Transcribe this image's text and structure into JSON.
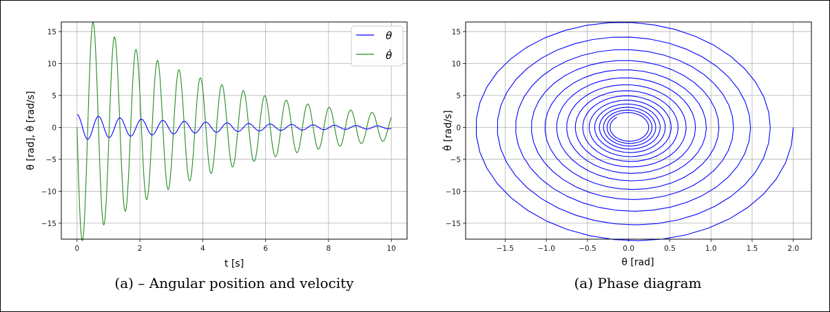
{
  "chart_data": [
    {
      "type": "line",
      "caption": "(a)   – Angular position and velocity",
      "xlabel": "t [s]",
      "ylabel": "θ [rad], θ̇ [rad/s]",
      "xlim": [
        -0.5,
        10.5
      ],
      "ylim": [
        -17.5,
        16.5
      ],
      "xticks": [
        0,
        2,
        4,
        6,
        8,
        10
      ],
      "yticks": [
        -15,
        -10,
        -5,
        0,
        5,
        10,
        15
      ],
      "grid": true,
      "legend_position": "top-right",
      "model": {
        "theta0": 2.0,
        "omega": 9.2,
        "decay": 0.22,
        "duration": 10
      },
      "series": [
        {
          "name": "θ",
          "color": "#0000ff",
          "peaks": [
            [
              0.0,
              2.0
            ],
            [
              0.34,
              -1.7
            ],
            [
              0.68,
              1.6
            ],
            [
              1.02,
              -1.4
            ],
            [
              1.37,
              1.3
            ],
            [
              1.71,
              -1.2
            ],
            [
              2.05,
              1.1
            ],
            [
              2.39,
              -1.0
            ],
            [
              2.73,
              0.9
            ],
            [
              3.07,
              -0.85
            ],
            [
              3.41,
              0.8
            ]
          ]
        },
        {
          "name": "θ̇",
          "color": "#228b22",
          "peaks": [
            [
              0.17,
              -15.8
            ],
            [
              0.6,
              14.6
            ],
            [
              0.96,
              -13.3
            ],
            [
              1.31,
              12.3
            ],
            [
              1.66,
              -11.2
            ],
            [
              2.0,
              10.4
            ],
            [
              2.35,
              -9.6
            ],
            [
              2.7,
              8.8
            ],
            [
              3.05,
              -8.1
            ],
            [
              3.39,
              7.5
            ],
            [
              3.74,
              -6.9
            ],
            [
              4.08,
              6.3
            ],
            [
              4.43,
              -5.8
            ],
            [
              4.77,
              5.4
            ],
            [
              5.12,
              -4.9
            ],
            [
              5.46,
              4.6
            ],
            [
              5.81,
              -4.2
            ],
            [
              6.15,
              3.9
            ],
            [
              6.5,
              -3.5
            ],
            [
              6.84,
              3.3
            ],
            [
              7.19,
              -3.0
            ],
            [
              7.53,
              2.8
            ],
            [
              7.88,
              -2.6
            ],
            [
              8.22,
              2.4
            ],
            [
              8.57,
              -2.2
            ],
            [
              8.91,
              2.0
            ],
            [
              9.26,
              -1.9
            ],
            [
              9.6,
              1.7
            ],
            [
              9.95,
              -1.6
            ]
          ]
        }
      ]
    },
    {
      "type": "line",
      "caption": "(a)   Phase diagram",
      "xlabel": "θ [rad]",
      "ylabel": "θ̇ [rad/s]",
      "xlim": [
        -1.98,
        2.22
      ],
      "ylim": [
        -17.5,
        16.5
      ],
      "xticks": [
        -1.5,
        -1.0,
        -0.5,
        0.0,
        0.5,
        1.0,
        1.5,
        2.0
      ],
      "yticks": [
        -15,
        -10,
        -5,
        0,
        5,
        10,
        15
      ],
      "grid": true,
      "series": [
        {
          "name": "",
          "color": "#0000ff",
          "description_points": [
            [
              2.0,
              0.0
            ],
            [
              1.56,
              -9.0
            ],
            [
              0.2,
              -15.8
            ],
            [
              -1.2,
              -11.0
            ],
            [
              -1.75,
              -0.5
            ],
            [
              -1.1,
              11.2
            ],
            [
              0.0,
              14.6
            ],
            [
              1.4,
              6.5
            ],
            [
              1.55,
              0.0
            ]
          ]
        }
      ]
    }
  ]
}
